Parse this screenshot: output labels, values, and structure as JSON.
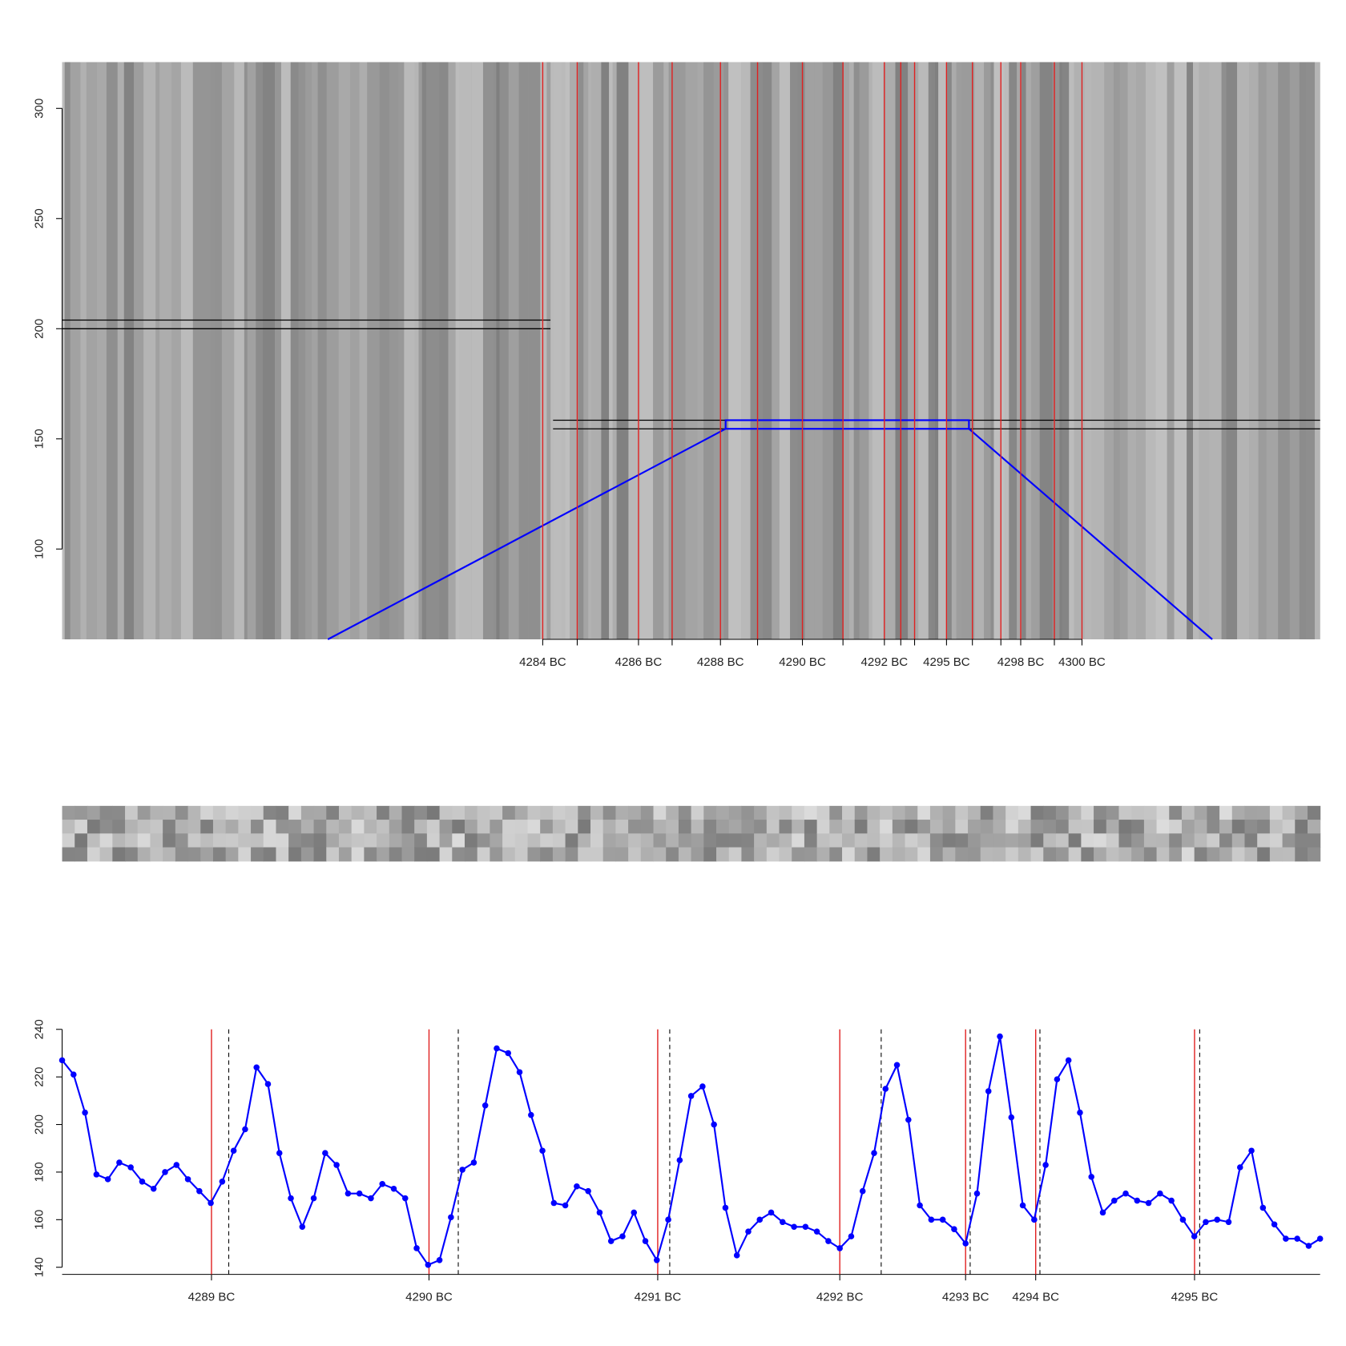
{
  "chart_data": [
    {
      "type": "image",
      "ylim": [
        59,
        321
      ],
      "yticks": [
        100,
        150,
        200,
        250,
        300
      ],
      "xlim": [
        0,
        1458
      ],
      "line_color": "#e02020",
      "year_lines": {
        "x": [
          557,
          597,
          668,
          707,
          763,
          806,
          858,
          905,
          953,
          972,
          988,
          1025,
          1055,
          1088,
          1111,
          1150,
          1182
        ],
        "labels": [
          "4284 BC",
          null,
          "4286 BC",
          null,
          "4288 BC",
          null,
          "4290 BC",
          null,
          "4292 BC",
          null,
          null,
          "4295 BC",
          null,
          null,
          "4298 BC",
          null,
          "4300 BC"
        ]
      }
    },
    {
      "type": "line",
      "ylim": [
        137,
        240
      ],
      "yticks": [
        140,
        160,
        180,
        200,
        220,
        240
      ],
      "xlim": [
        0,
        110
      ],
      "color": "#0000ff",
      "line_color": "#e02020",
      "values": [
        227,
        221,
        205,
        179,
        177,
        184,
        182,
        176,
        173,
        180,
        183,
        177,
        172,
        167,
        176,
        189,
        198,
        224,
        217,
        188,
        169,
        157,
        169,
        188,
        183,
        171,
        171,
        169,
        175,
        173,
        169,
        148,
        141,
        143,
        161,
        181,
        184,
        208,
        232,
        230,
        222,
        204,
        189,
        167,
        166,
        174,
        172,
        163,
        151,
        153,
        163,
        151,
        143,
        160,
        185,
        212,
        216,
        200,
        165,
        145,
        155,
        160,
        163,
        159,
        157,
        157,
        155,
        151,
        148,
        153,
        172,
        188,
        215,
        225,
        202,
        166,
        160,
        160,
        156,
        150,
        171,
        214,
        237,
        203,
        166,
        160,
        183,
        219,
        227,
        205,
        178,
        163,
        168,
        171,
        168,
        167,
        171,
        168,
        160,
        153,
        159,
        160,
        159,
        182,
        189,
        165,
        158,
        152,
        152,
        149,
        152
      ],
      "year_lines": {
        "x": [
          13.06,
          32.08,
          52.08,
          68.0,
          79.0,
          85.13,
          99.02
        ],
        "labels": [
          "4289 BC",
          "4290 BC",
          "4291 BC",
          "4292 BC",
          "4293 BC",
          "4294 BC",
          "4295 BC"
        ]
      },
      "dashed_lines": [
        14.57,
        34.64,
        53.13,
        71.62,
        79.4,
        85.5,
        99.47
      ]
    }
  ]
}
